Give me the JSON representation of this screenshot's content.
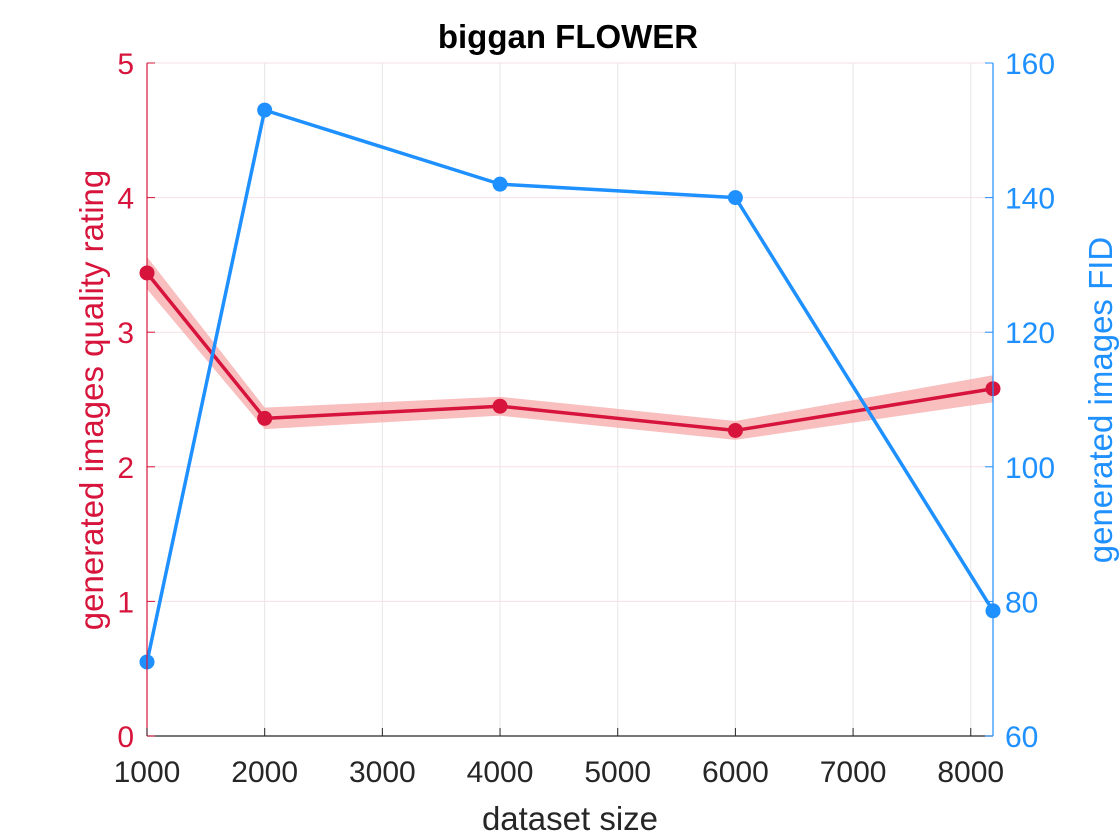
{
  "colors": {
    "left_axis": "#D7143C",
    "right_axis": "#1E90FF",
    "band": "#F7A8A8",
    "grid": "#E6E6E6",
    "x_axis": "#262626"
  },
  "chart_data": {
    "type": "line",
    "title": "biggan FLOWER",
    "xlabel": "dataset size",
    "ylabel_left": "generated images quality rating",
    "ylabel_right": "generated images FID",
    "xlim": [
      1000,
      8189
    ],
    "ylim_left": [
      0,
      5
    ],
    "ylim_right": [
      60,
      160
    ],
    "x_ticks": [
      1000,
      2000,
      3000,
      4000,
      5000,
      6000,
      7000,
      8000
    ],
    "y_left_ticks": [
      0,
      1,
      2,
      3,
      4,
      5
    ],
    "y_right_ticks": [
      60,
      80,
      100,
      120,
      140,
      160
    ],
    "grid": true,
    "series": [
      {
        "axis": "left",
        "color": "#D7143C",
        "x": [
          1000,
          2000,
          4000,
          6000,
          8189
        ],
        "values": [
          3.44,
          2.36,
          2.45,
          2.27,
          2.58
        ],
        "band_lower": [
          3.32,
          2.28,
          2.38,
          2.2,
          2.48
        ],
        "band_upper": [
          3.56,
          2.44,
          2.52,
          2.34,
          2.68
        ]
      },
      {
        "axis": "right",
        "color": "#1E90FF",
        "x": [
          1000,
          2000,
          4000,
          6000,
          8189
        ],
        "values": [
          71,
          153,
          142,
          140,
          78.6
        ]
      }
    ]
  }
}
